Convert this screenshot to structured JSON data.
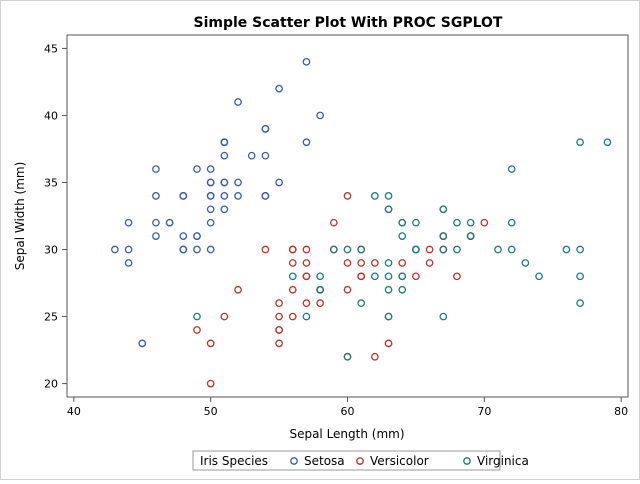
{
  "chart_data": {
    "type": "scatter",
    "title": "Simple Scatter Plot With PROC SGPLOT",
    "xlabel": "Sepal Length (mm)",
    "ylabel": "Sepal Width (mm)",
    "xlim": [
      39.5,
      80.5
    ],
    "ylim": [
      19,
      46
    ],
    "xticks": [
      40,
      50,
      60,
      70,
      80
    ],
    "yticks": [
      20,
      25,
      30,
      35,
      40,
      45
    ],
    "grid": false,
    "legend": {
      "title": "Iris Species",
      "position": "bottom"
    },
    "series": [
      {
        "name": "Setosa",
        "color": "#3a5ba8",
        "marker": "open-circle",
        "points": [
          [
            51,
            35
          ],
          [
            49,
            30
          ],
          [
            47,
            32
          ],
          [
            46,
            31
          ],
          [
            50,
            36
          ],
          [
            54,
            39
          ],
          [
            46,
            34
          ],
          [
            50,
            34
          ],
          [
            44,
            29
          ],
          [
            49,
            31
          ],
          [
            54,
            37
          ],
          [
            48,
            34
          ],
          [
            48,
            30
          ],
          [
            43,
            30
          ],
          [
            58,
            40
          ],
          [
            57,
            44
          ],
          [
            54,
            39
          ],
          [
            51,
            35
          ],
          [
            57,
            38
          ],
          [
            51,
            38
          ],
          [
            54,
            34
          ],
          [
            51,
            37
          ],
          [
            46,
            36
          ],
          [
            51,
            33
          ],
          [
            48,
            34
          ],
          [
            50,
            30
          ],
          [
            50,
            34
          ],
          [
            52,
            35
          ],
          [
            52,
            34
          ],
          [
            47,
            32
          ],
          [
            48,
            31
          ],
          [
            54,
            34
          ],
          [
            52,
            41
          ],
          [
            55,
            42
          ],
          [
            49,
            31
          ],
          [
            50,
            32
          ],
          [
            55,
            35
          ],
          [
            49,
            36
          ],
          [
            44,
            30
          ],
          [
            51,
            34
          ],
          [
            50,
            35
          ],
          [
            45,
            23
          ],
          [
            44,
            32
          ],
          [
            50,
            35
          ],
          [
            51,
            38
          ],
          [
            48,
            30
          ],
          [
            51,
            38
          ],
          [
            46,
            32
          ],
          [
            53,
            37
          ],
          [
            50,
            33
          ]
        ]
      },
      {
        "name": "Versicolor",
        "color": "#b8342c",
        "marker": "open-circle",
        "points": [
          [
            70,
            32
          ],
          [
            64,
            32
          ],
          [
            69,
            31
          ],
          [
            55,
            23
          ],
          [
            65,
            28
          ],
          [
            57,
            28
          ],
          [
            63,
            33
          ],
          [
            49,
            24
          ],
          [
            66,
            29
          ],
          [
            52,
            27
          ],
          [
            50,
            20
          ],
          [
            59,
            30
          ],
          [
            60,
            22
          ],
          [
            61,
            29
          ],
          [
            56,
            29
          ],
          [
            67,
            31
          ],
          [
            56,
            30
          ],
          [
            58,
            27
          ],
          [
            62,
            22
          ],
          [
            56,
            25
          ],
          [
            59,
            32
          ],
          [
            61,
            28
          ],
          [
            63,
            25
          ],
          [
            61,
            28
          ],
          [
            64,
            29
          ],
          [
            66,
            30
          ],
          [
            68,
            28
          ],
          [
            67,
            30
          ],
          [
            60,
            29
          ],
          [
            57,
            26
          ],
          [
            55,
            24
          ],
          [
            55,
            24
          ],
          [
            58,
            27
          ],
          [
            60,
            27
          ],
          [
            54,
            30
          ],
          [
            60,
            34
          ],
          [
            67,
            31
          ],
          [
            63,
            23
          ],
          [
            56,
            30
          ],
          [
            55,
            25
          ],
          [
            55,
            26
          ],
          [
            61,
            30
          ],
          [
            58,
            26
          ],
          [
            50,
            23
          ],
          [
            56,
            27
          ],
          [
            57,
            30
          ],
          [
            57,
            29
          ],
          [
            62,
            29
          ],
          [
            51,
            25
          ],
          [
            57,
            28
          ]
        ]
      },
      {
        "name": "Virginica",
        "color": "#1f7a7a",
        "marker": "open-circle",
        "points": [
          [
            63,
            33
          ],
          [
            58,
            27
          ],
          [
            71,
            30
          ],
          [
            63,
            29
          ],
          [
            65,
            30
          ],
          [
            76,
            30
          ],
          [
            49,
            25
          ],
          [
            73,
            29
          ],
          [
            67,
            25
          ],
          [
            72,
            36
          ],
          [
            65,
            32
          ],
          [
            64,
            27
          ],
          [
            68,
            30
          ],
          [
            57,
            25
          ],
          [
            58,
            28
          ],
          [
            64,
            32
          ],
          [
            65,
            30
          ],
          [
            77,
            38
          ],
          [
            77,
            26
          ],
          [
            60,
            22
          ],
          [
            69,
            32
          ],
          [
            56,
            28
          ],
          [
            77,
            28
          ],
          [
            63,
            27
          ],
          [
            67,
            33
          ],
          [
            72,
            32
          ],
          [
            62,
            28
          ],
          [
            61,
            30
          ],
          [
            64,
            28
          ],
          [
            72,
            30
          ],
          [
            74,
            28
          ],
          [
            79,
            38
          ],
          [
            64,
            28
          ],
          [
            63,
            28
          ],
          [
            61,
            26
          ],
          [
            77,
            30
          ],
          [
            63,
            34
          ],
          [
            64,
            31
          ],
          [
            60,
            30
          ],
          [
            69,
            31
          ],
          [
            67,
            31
          ],
          [
            69,
            31
          ],
          [
            58,
            27
          ],
          [
            68,
            32
          ],
          [
            67,
            33
          ],
          [
            67,
            30
          ],
          [
            63,
            25
          ],
          [
            65,
            30
          ],
          [
            62,
            34
          ],
          [
            59,
            30
          ]
        ]
      }
    ]
  }
}
